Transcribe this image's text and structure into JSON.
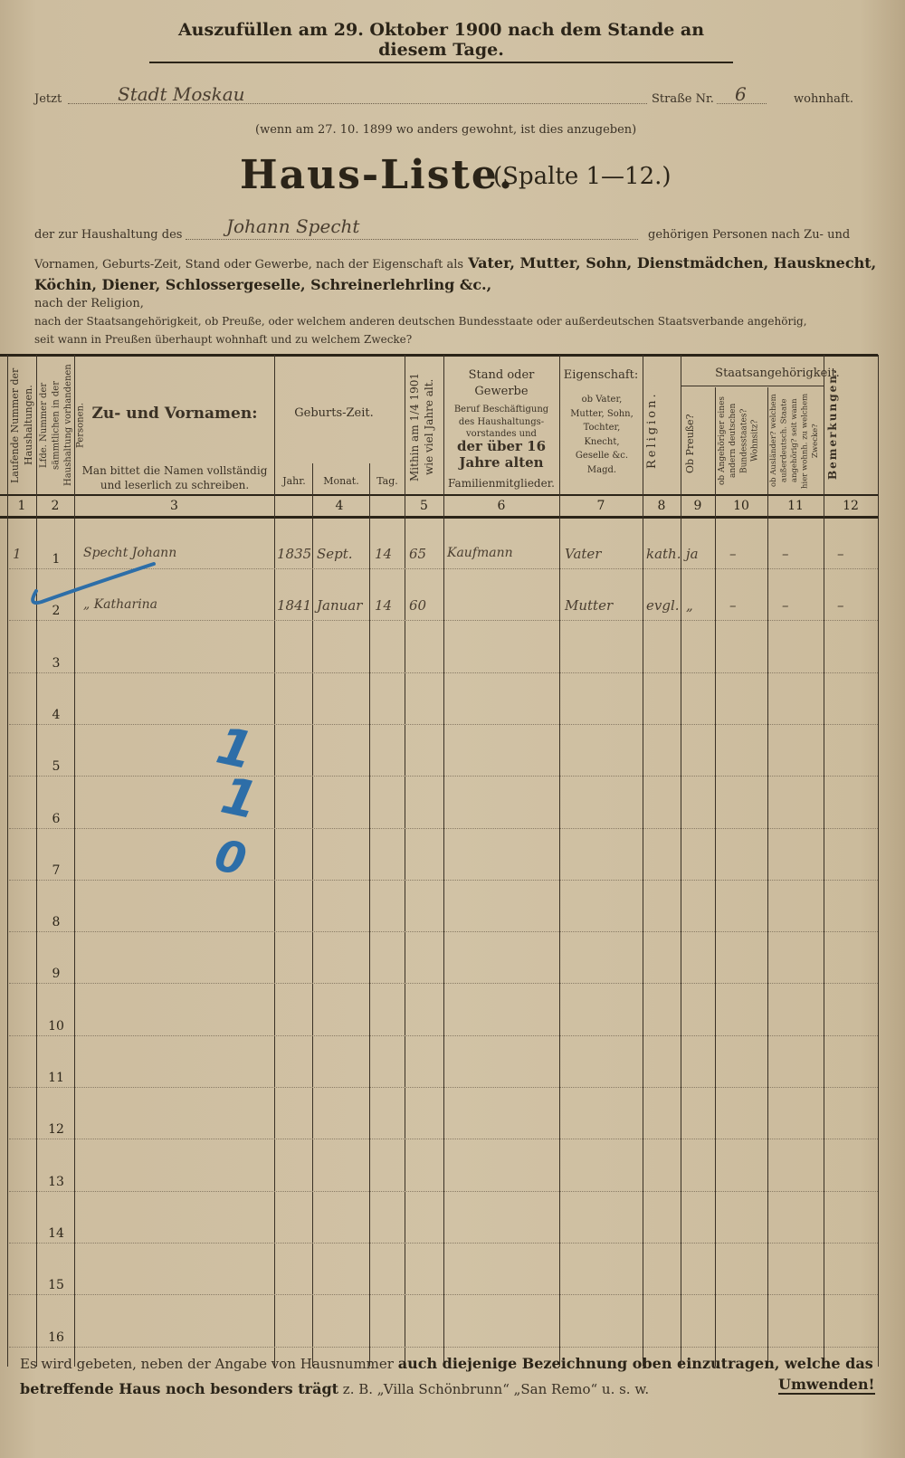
{
  "header": {
    "instruction": "Auszufüllen am 29. Oktober 1900 nach dem Stande an diesem Tage.",
    "jetzt_label": "Jetzt",
    "jetzt_value": "Stadt Moskau",
    "strasse_label": "Straße Nr.",
    "strasse_value": "6",
    "wohnhaft_label": "wohnhaft.",
    "previous_note": "(wenn am 27. 10. 1899 wo anders gewohnt, ist dies anzugeben)",
    "title": "Haus-Liste.",
    "subtitle": "(Spalte 1—12.)",
    "household_prefix": "der zur Haushaltung des",
    "household_value": "Johann Specht",
    "household_suffix": "gehörigen Personen nach Zu- und",
    "line2_normal": "Vornamen, Geburts-Zeit, Stand oder Gewerbe, nach der Eigenschaft als",
    "line2_bold": "Vater, Mutter, Sohn, Dienstmädchen, Hausknecht,",
    "line3_bold": "Köchin, Diener, Schlossergeselle, Schreinerlehrling &c.,",
    "line4": "nach der Religion,",
    "line5": "nach der Staatsangehörigkeit, ob Preuße, oder welchem anderen deutschen Bundesstaate oder außerdeutschen Staatsverbande angehörig,",
    "line6": "seit wann in Preußen überhaupt wohnhaft und zu welchem Zwecke?"
  },
  "table": {
    "headers": {
      "c1": "Laufende Nummer der Haushaltungen.",
      "c2": "Lfde. Nummer der sämmtlichen in der Haushaltung vorhandenen Personen.",
      "c3_title": "Zu- und Vornamen:",
      "c3_note": "Man bittet die Namen vollständig und leserlich zu schreiben.",
      "c4_title": "Geburts-Zeit.",
      "c4_jahr": "Jahr.",
      "c4_monat": "Monat.",
      "c4_tag": "Tag.",
      "c5": "Mithin am 1/4 1901 wie viel Jahre alt.",
      "c6_a": "Stand oder Gewerbe",
      "c6_b": "Beruf Beschäftigung des Haushaltungs-vorstandes und",
      "c6_c": "der über 16 Jahre alten",
      "c6_d": "Familienmitglieder.",
      "c7_title": "Eigenschaft:",
      "c7_note": "ob Vater, Mutter, Sohn, Tochter, Knecht, Geselle &c. Magd.",
      "c8": "Religion.",
      "staat": "Staatsangehörigkeit.",
      "c9": "Ob Preuße?",
      "c10": "ob Angehöriger eines andern deutschen Bundesstaates? Wohnsitz?",
      "c11": "ob Ausländer? welchem außerdeutsch. Staate angehörig? seit wann hier wohnh. zu welchem Zwecke?",
      "c12": "Bemerkungen."
    },
    "column_numbers": [
      "1",
      "2",
      "3",
      "4",
      "5",
      "6",
      "7",
      "8",
      "9",
      "10",
      "11",
      "12"
    ],
    "row_numbers": [
      "1",
      "2",
      "3",
      "4",
      "5",
      "6",
      "7",
      "8",
      "9",
      "10",
      "11",
      "12",
      "13",
      "14",
      "15",
      "16"
    ],
    "entries": [
      {
        "haushalt": "1",
        "name": "Specht Johann",
        "jahr": "1835",
        "monat": "Sept.",
        "tag": "14",
        "alter": "65",
        "stand": "Kaufmann",
        "eigenschaft": "Vater",
        "religion": "kath.",
        "preusse": "ja",
        "c10": "–",
        "c11": "–",
        "c12": "–"
      },
      {
        "haushalt": "",
        "name": "„ Katharina",
        "jahr": "1841",
        "monat": "Januar",
        "tag": "14",
        "alter": "60",
        "stand": "",
        "eigenschaft": "Mutter",
        "religion": "evgl.",
        "preusse": "„",
        "c10": "–",
        "c11": "–",
        "c12": "–"
      }
    ],
    "pencil_marks": [
      "1",
      "1",
      "0"
    ]
  },
  "footer": {
    "normal1": "Es wird gebeten, neben der Angabe von Hausnummer",
    "bold1": "auch diejenige Bezeichnung oben einzutragen, welche das",
    "bold2": "betreffende Haus noch besonders trägt",
    "normal2": "z. B. „Villa Schönbrunn“ „San Remo“ u. s. w.",
    "umwenden": "Umwenden!"
  },
  "colors": {
    "paper": "#cdbd9f",
    "ink": "#2b2418",
    "pencil_blue": "#2d6ea8"
  }
}
